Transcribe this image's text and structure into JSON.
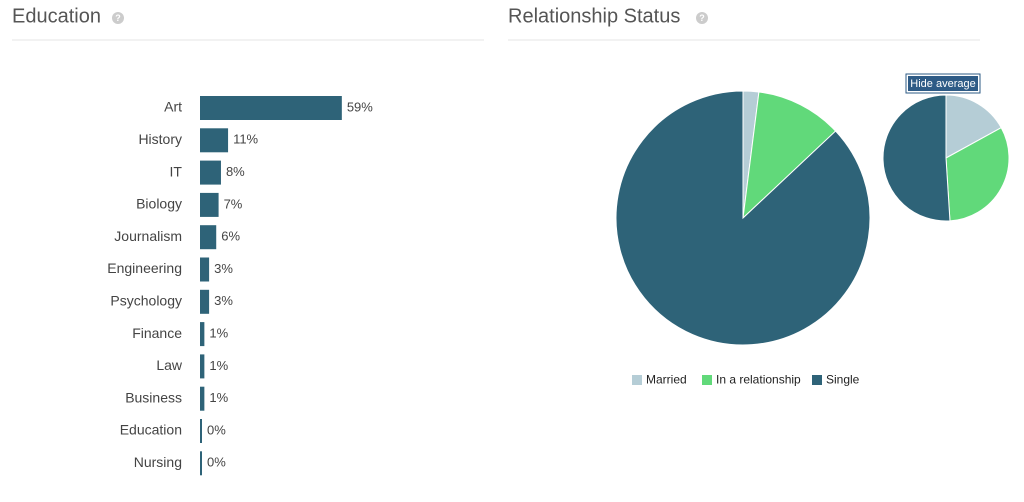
{
  "chart_data": [
    {
      "type": "bar",
      "title": "Education",
      "orientation": "horizontal",
      "color": "#2e6378",
      "categories": [
        "Art",
        "History",
        "IT",
        "Biology",
        "Journalism",
        "Engineering",
        "Psychology",
        "Finance",
        "Law",
        "Business",
        "Education",
        "Nursing"
      ],
      "values": [
        59,
        11,
        8,
        7,
        6,
        3,
        3,
        1,
        1,
        1,
        0,
        0
      ],
      "value_labels": [
        "59%",
        "11%",
        "8%",
        "7%",
        "6%",
        "3%",
        "3%",
        "1%",
        "1%",
        "1%",
        "0%",
        "0%"
      ]
    },
    {
      "type": "pie",
      "title": "Relationship Status",
      "categories": [
        "Married",
        "In a relationship",
        "Single"
      ],
      "colors": [
        "#b5cdd6",
        "#61d97a",
        "#2e6378"
      ],
      "values": [
        2,
        11,
        87
      ],
      "average_values": [
        17,
        32,
        51
      ],
      "button": "Hide average"
    }
  ]
}
